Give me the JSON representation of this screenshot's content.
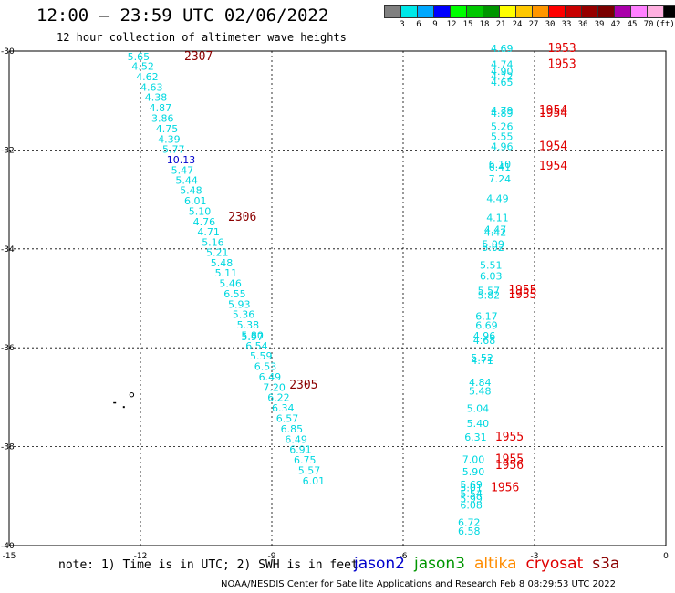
{
  "header": {
    "title": "12:00 – 23:59 UTC 02/06/2022",
    "subtitle": "12 hour collection of altimeter wave heights"
  },
  "colorbar": {
    "colors": [
      "#808080",
      "#00e8e8",
      "#00a8ff",
      "#0000ff",
      "#00ff00",
      "#00c800",
      "#009600",
      "#ffff00",
      "#ffc800",
      "#ff9600",
      "#ff0000",
      "#c80000",
      "#960000",
      "#7a0000",
      "#aa00aa",
      "#ff80ff",
      "#ffb0e0",
      "#000000"
    ],
    "ticks": [
      "3",
      "6",
      "9",
      "12",
      "15",
      "18",
      "21",
      "24",
      "27",
      "30",
      "33",
      "36",
      "39",
      "42",
      "45",
      "70",
      "(ft)"
    ]
  },
  "axes": {
    "x_ticks": [
      "-15",
      "-12",
      "-9",
      "-6",
      "-3",
      "0"
    ],
    "y_ticks": [
      "-30",
      "-32",
      "-34",
      "-36",
      "-38",
      "-40"
    ]
  },
  "colors": {
    "jason3": "#00d8e0",
    "jason2": "#0000cc",
    "s3a": "#8b0000",
    "cryosat": "#e00000",
    "altika": "#ff8c00",
    "jason3_label": "#009600"
  },
  "tracks": {
    "west_times": [
      {
        "label": "2307",
        "lon": -11.0,
        "lat": -30.18
      },
      {
        "label": "2306",
        "lon": -10.0,
        "lat": -33.43
      },
      {
        "label": "2305",
        "lon": -8.6,
        "lat": -36.83
      }
    ],
    "east_times": [
      {
        "label": "1953",
        "lon": -2.7,
        "lat": -30.02
      },
      {
        "label": "1953",
        "lon": -2.7,
        "lat": -30.34
      },
      {
        "label": "1954",
        "lon": -2.9,
        "lat": -31.27
      },
      {
        "label": "1954",
        "lon": -2.9,
        "lat": -31.33
      },
      {
        "label": "1954",
        "lon": -2.9,
        "lat": -32.0
      },
      {
        "label": "1954",
        "lon": -2.9,
        "lat": -32.4
      },
      {
        "label": "1955",
        "lon": -3.6,
        "lat": -34.91
      },
      {
        "label": "1955",
        "lon": -3.6,
        "lat": -35.0
      },
      {
        "label": "1955",
        "lon": -3.9,
        "lat": -37.88
      },
      {
        "label": "1955",
        "lon": -3.9,
        "lat": -38.33
      },
      {
        "label": "1956",
        "lon": -3.9,
        "lat": -38.45
      },
      {
        "label": "1956",
        "lon": -4.0,
        "lat": -38.9
      }
    ],
    "west_values": [
      {
        "v": "5.65",
        "lon": -12.3,
        "lat": -30.18,
        "sat": "jason3"
      },
      {
        "v": "4.52",
        "lon": -12.2,
        "lat": -30.38,
        "sat": "jason3"
      },
      {
        "v": "4.62",
        "lon": -12.1,
        "lat": -30.59,
        "sat": "jason3"
      },
      {
        "v": "4.63",
        "lon": -12.0,
        "lat": -30.8,
        "sat": "jason3"
      },
      {
        "v": "4.38",
        "lon": -11.9,
        "lat": -31.01,
        "sat": "jason3"
      },
      {
        "v": "4.87",
        "lon": -11.8,
        "lat": -31.22,
        "sat": "jason3"
      },
      {
        "v": "3.86",
        "lon": -11.75,
        "lat": -31.43,
        "sat": "jason3"
      },
      {
        "v": "4.75",
        "lon": -11.65,
        "lat": -31.64,
        "sat": "jason3"
      },
      {
        "v": "4.39",
        "lon": -11.6,
        "lat": -31.85,
        "sat": "jason3"
      },
      {
        "v": "5.77",
        "lon": -11.5,
        "lat": -32.06,
        "sat": "jason3"
      },
      {
        "v": "10.13",
        "lon": -11.4,
        "lat": -32.27,
        "sat": "jason2"
      },
      {
        "v": "5.47",
        "lon": -11.3,
        "lat": -32.48,
        "sat": "jason3"
      },
      {
        "v": "5.44",
        "lon": -11.2,
        "lat": -32.68,
        "sat": "jason3"
      },
      {
        "v": "5.48",
        "lon": -11.1,
        "lat": -32.89,
        "sat": "jason3"
      },
      {
        "v": "6.01",
        "lon": -11.0,
        "lat": -33.1,
        "sat": "jason3"
      },
      {
        "v": "5.10",
        "lon": -10.9,
        "lat": -33.31,
        "sat": "jason3"
      },
      {
        "v": "4.76",
        "lon": -10.8,
        "lat": -33.52,
        "sat": "jason3"
      },
      {
        "v": "4.71",
        "lon": -10.7,
        "lat": -33.73,
        "sat": "jason3"
      },
      {
        "v": "5.16",
        "lon": -10.6,
        "lat": -33.94,
        "sat": "jason3"
      },
      {
        "v": "5.21",
        "lon": -10.5,
        "lat": -34.14,
        "sat": "jason3"
      },
      {
        "v": "5.48",
        "lon": -10.4,
        "lat": -34.35,
        "sat": "jason3"
      },
      {
        "v": "5.11",
        "lon": -10.3,
        "lat": -34.56,
        "sat": "jason3"
      },
      {
        "v": "5.46",
        "lon": -10.2,
        "lat": -34.77,
        "sat": "jason3"
      },
      {
        "v": "6.55",
        "lon": -10.1,
        "lat": -34.98,
        "sat": "jason3"
      },
      {
        "v": "5.93",
        "lon": -10.0,
        "lat": -35.19,
        "sat": "jason3"
      },
      {
        "v": "5.36",
        "lon": -9.9,
        "lat": -35.4,
        "sat": "jason3"
      },
      {
        "v": "5.38",
        "lon": -9.8,
        "lat": -35.61,
        "sat": "jason3"
      },
      {
        "v": "5.80",
        "lon": -9.7,
        "lat": -35.82,
        "sat": "jason3"
      },
      {
        "v": "5.97",
        "lon": -9.7,
        "lat": -35.85,
        "sat": "jason3"
      },
      {
        "v": "6.54",
        "lon": -9.6,
        "lat": -36.03,
        "sat": "jason3"
      },
      {
        "v": "5.59",
        "lon": -9.5,
        "lat": -36.24,
        "sat": "jason3"
      },
      {
        "v": "6.53",
        "lon": -9.4,
        "lat": -36.45,
        "sat": "jason3"
      },
      {
        "v": "6.49",
        "lon": -9.3,
        "lat": -36.66,
        "sat": "jason3"
      },
      {
        "v": "7.20",
        "lon": -9.2,
        "lat": -36.87,
        "sat": "jason3"
      },
      {
        "v": "6.22",
        "lon": -9.1,
        "lat": -37.08,
        "sat": "jason3"
      },
      {
        "v": "6.34",
        "lon": -9.0,
        "lat": -37.29,
        "sat": "jason3"
      },
      {
        "v": "6.57",
        "lon": -8.9,
        "lat": -37.5,
        "sat": "jason3"
      },
      {
        "v": "6.85",
        "lon": -8.8,
        "lat": -37.71,
        "sat": "jason3"
      },
      {
        "v": "6.49",
        "lon": -8.7,
        "lat": -37.92,
        "sat": "jason3"
      },
      {
        "v": "6.91",
        "lon": -8.6,
        "lat": -38.13,
        "sat": "jason3"
      },
      {
        "v": "6.75",
        "lon": -8.5,
        "lat": -38.34,
        "sat": "jason3"
      },
      {
        "v": "5.57",
        "lon": -8.4,
        "lat": -38.55,
        "sat": "jason3"
      },
      {
        "v": "6.01",
        "lon": -8.3,
        "lat": -38.76,
        "sat": "jason3"
      }
    ],
    "east_values": [
      {
        "v": "4.69",
        "lon": -4.0,
        "lat": -30.02
      },
      {
        "v": "4.74",
        "lon": -4.0,
        "lat": -30.34
      },
      {
        "v": "4.90",
        "lon": -4.0,
        "lat": -30.48
      },
      {
        "v": "4.72",
        "lon": -4.0,
        "lat": -30.58
      },
      {
        "v": "4.65",
        "lon": -4.0,
        "lat": -30.7
      },
      {
        "v": "4.79",
        "lon": -4.0,
        "lat": -31.27
      },
      {
        "v": "4.89",
        "lon": -4.0,
        "lat": -31.33
      },
      {
        "v": "5.26",
        "lon": -4.0,
        "lat": -31.6
      },
      {
        "v": "5.55",
        "lon": -4.0,
        "lat": -31.8
      },
      {
        "v": "4.96",
        "lon": -4.0,
        "lat": -32.0
      },
      {
        "v": "6.10",
        "lon": -4.05,
        "lat": -32.36
      },
      {
        "v": "6.41",
        "lon": -4.05,
        "lat": -32.42
      },
      {
        "v": "7.24",
        "lon": -4.05,
        "lat": -32.66
      },
      {
        "v": "4.49",
        "lon": -4.1,
        "lat": -33.05
      },
      {
        "v": "4.11",
        "lon": -4.1,
        "lat": -33.44
      },
      {
        "v": "4.47",
        "lon": -4.15,
        "lat": -33.68
      },
      {
        "v": "4.42",
        "lon": -4.15,
        "lat": -33.74
      },
      {
        "v": "5.09",
        "lon": -4.2,
        "lat": -33.98
      },
      {
        "v": "5.02",
        "lon": -4.2,
        "lat": -34.04
      },
      {
        "v": "5.51",
        "lon": -4.25,
        "lat": -34.4
      },
      {
        "v": "6.03",
        "lon": -4.25,
        "lat": -34.62
      },
      {
        "v": "5.57",
        "lon": -4.3,
        "lat": -34.92
      },
      {
        "v": "5.82",
        "lon": -4.3,
        "lat": -35.01
      },
      {
        "v": "6.17",
        "lon": -4.35,
        "lat": -35.43
      },
      {
        "v": "6.69",
        "lon": -4.35,
        "lat": -35.62
      },
      {
        "v": "4.96",
        "lon": -4.4,
        "lat": -35.83
      },
      {
        "v": "4.68",
        "lon": -4.4,
        "lat": -35.92
      },
      {
        "v": "5.52",
        "lon": -4.45,
        "lat": -36.27
      },
      {
        "v": "4.71",
        "lon": -4.45,
        "lat": -36.33
      },
      {
        "v": "4.84",
        "lon": -4.5,
        "lat": -36.77
      },
      {
        "v": "5.48",
        "lon": -4.5,
        "lat": -36.95
      },
      {
        "v": "5.04",
        "lon": -4.55,
        "lat": -37.3
      },
      {
        "v": "5.40",
        "lon": -4.55,
        "lat": -37.6
      },
      {
        "v": "6.31",
        "lon": -4.6,
        "lat": -37.88
      },
      {
        "v": "7.00",
        "lon": -4.65,
        "lat": -38.33
      },
      {
        "v": "5.90",
        "lon": -4.65,
        "lat": -38.58
      },
      {
        "v": "5.69",
        "lon": -4.7,
        "lat": -38.84
      },
      {
        "v": "5.01",
        "lon": -4.7,
        "lat": -38.9
      },
      {
        "v": "5.54",
        "lon": -4.7,
        "lat": -39.02
      },
      {
        "v": "5.99",
        "lon": -4.7,
        "lat": -39.12
      },
      {
        "v": "6.08",
        "lon": -4.7,
        "lat": -39.25
      },
      {
        "v": "6.72",
        "lon": -4.75,
        "lat": -39.6
      },
      {
        "v": "6.58",
        "lon": -4.75,
        "lat": -39.78
      }
    ]
  },
  "footer": {
    "note": "note:  1) Time is in UTC; 2) SWH is in feet",
    "legend": [
      {
        "name": "jason2",
        "color": "#0000cc"
      },
      {
        "name": "jason3",
        "color": "#009600"
      },
      {
        "name": "altika",
        "color": "#ff8c00"
      },
      {
        "name": "cryosat",
        "color": "#e00000"
      },
      {
        "name": "s3a",
        "color": "#8b0000"
      }
    ],
    "credit": "NOAA/NESDIS Center for Satellite Applications and Research    Feb  8 08:29:53 UTC 2022"
  }
}
